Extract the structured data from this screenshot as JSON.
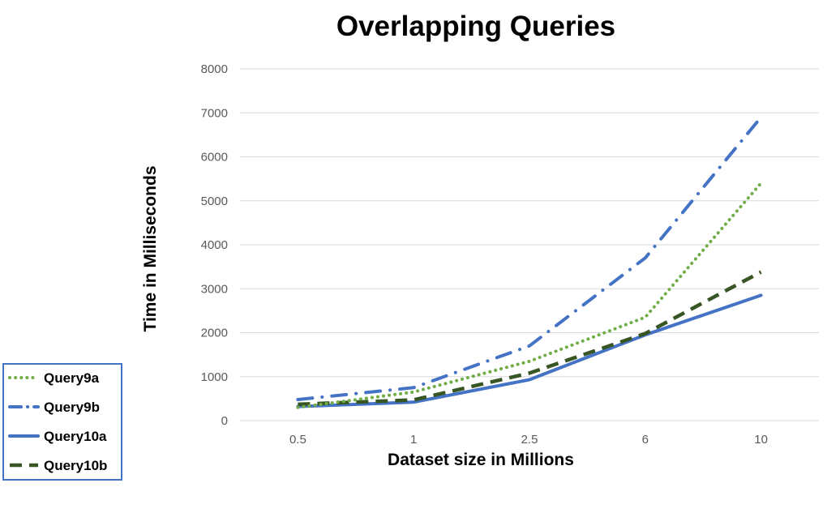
{
  "chart_data": {
    "type": "line",
    "title": "Overlapping Queries",
    "xlabel": "Dataset size in Millions",
    "ylabel": "Time in Milliseconds",
    "categories": [
      "0.5",
      "1",
      "2.5",
      "6",
      "10"
    ],
    "ylim": [
      0,
      8000
    ],
    "yticks": [
      "0",
      "1000",
      "2000",
      "3000",
      "4000",
      "5000",
      "6000",
      "7000",
      "8000"
    ],
    "grid": true,
    "legend_position": "bottom-left",
    "series": [
      {
        "name": "Query9a",
        "values": [
          300,
          650,
          1350,
          2350,
          5400
        ],
        "color": "#70AD47",
        "style": "dotted"
      },
      {
        "name": "Query9b",
        "values": [
          480,
          750,
          1700,
          3700,
          6900
        ],
        "color": "#4472C4",
        "style": "dash-dot"
      },
      {
        "name": "Query10a",
        "values": [
          320,
          420,
          930,
          1950,
          2850
        ],
        "color": "#4472C4",
        "style": "solid"
      },
      {
        "name": "Query10b",
        "values": [
          370,
          470,
          1080,
          1980,
          3380
        ],
        "color": "#375623",
        "style": "dashed"
      }
    ]
  }
}
